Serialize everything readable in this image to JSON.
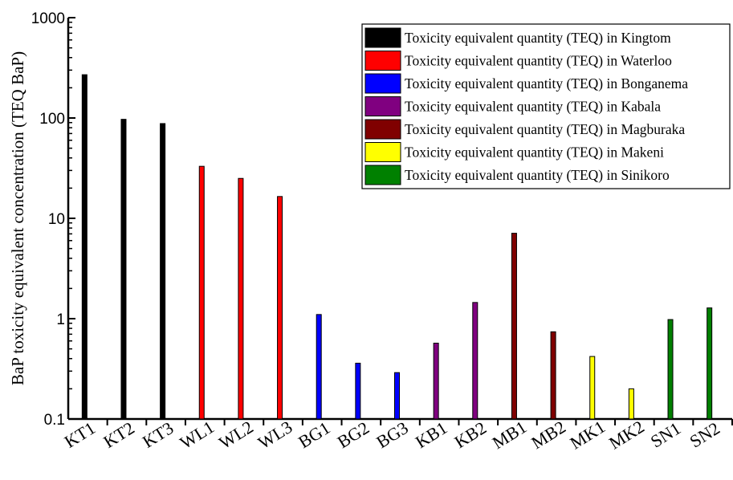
{
  "chart_data": {
    "type": "bar",
    "yscale": "log",
    "ylim": [
      0.1,
      1000
    ],
    "ylabel": "BaP toxicity equivalent concentration (TEQ BaP)",
    "xlabel": "",
    "y_ticks": [
      {
        "value": 0.1,
        "label": "0.1"
      },
      {
        "value": 1,
        "label": "1"
      },
      {
        "value": 10,
        "label": "10"
      },
      {
        "value": 100,
        "label": "100"
      },
      {
        "value": 1000,
        "label": "1000"
      }
    ],
    "categories": [
      "KT1",
      "KT2",
      "KT3",
      "WL1",
      "WL2",
      "WL3",
      "BG1",
      "BG2",
      "BG3",
      "KB1",
      "KB2",
      "MB1",
      "MB2",
      "MK1",
      "MK2",
      "SN1",
      "SN2"
    ],
    "series": [
      {
        "name": "Toxicity equivalent quantity (TEQ) in Kingtom",
        "color": "#000000",
        "points": [
          {
            "category": "KT1",
            "value": 270
          },
          {
            "category": "KT2",
            "value": 97
          },
          {
            "category": "KT3",
            "value": 88
          }
        ]
      },
      {
        "name": "Toxicity equivalent quantity (TEQ) in Waterloo",
        "color": "#ff0000",
        "points": [
          {
            "category": "WL1",
            "value": 33
          },
          {
            "category": "WL2",
            "value": 25
          },
          {
            "category": "WL3",
            "value": 16.5
          }
        ]
      },
      {
        "name": "Toxicity equivalent quantity (TEQ) in Bonganema",
        "color": "#0000ff",
        "points": [
          {
            "category": "BG1",
            "value": 1.1
          },
          {
            "category": "BG2",
            "value": 0.36
          },
          {
            "category": "BG3",
            "value": 0.29
          }
        ]
      },
      {
        "name": "Toxicity equivalent quantity (TEQ) in Kabala",
        "color": "#800080",
        "points": [
          {
            "category": "KB1",
            "value": 0.57
          },
          {
            "category": "KB2",
            "value": 1.45
          }
        ]
      },
      {
        "name": "Toxicity equivalent quantity (TEQ) in Magburaka",
        "color": "#800000",
        "points": [
          {
            "category": "MB1",
            "value": 7.1
          },
          {
            "category": "MB2",
            "value": 0.74
          }
        ]
      },
      {
        "name": "Toxicity equivalent quantity (TEQ) in Makeni",
        "color": "#ffff00",
        "points": [
          {
            "category": "MK1",
            "value": 0.42
          },
          {
            "category": "MK2",
            "value": 0.2
          }
        ]
      },
      {
        "name": "Toxicity equivalent quantity (TEQ) in Sinikoro",
        "color": "#008000",
        "points": [
          {
            "category": "SN1",
            "value": 0.98
          },
          {
            "category": "SN2",
            "value": 1.28
          }
        ]
      }
    ],
    "legend_position": "top-right",
    "grid": false
  }
}
